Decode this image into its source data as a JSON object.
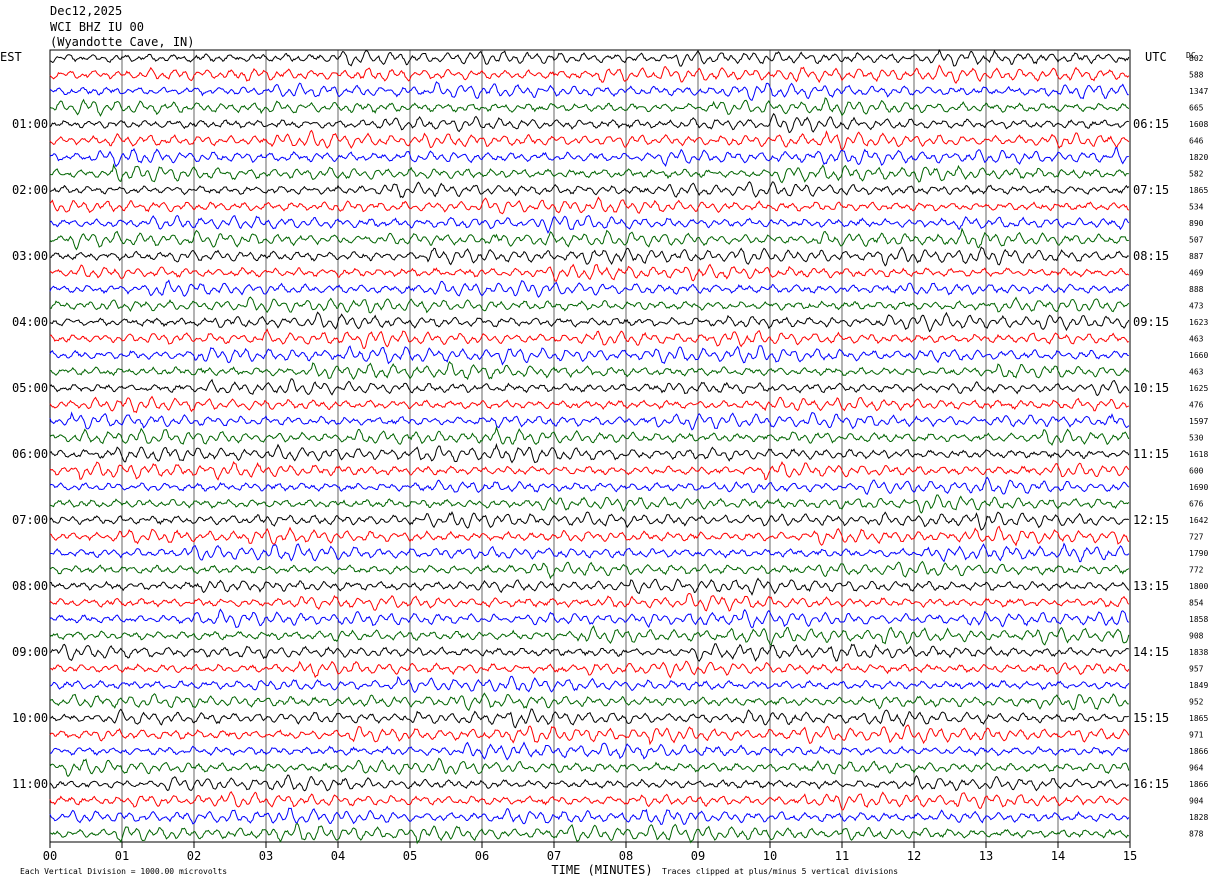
{
  "header": {
    "date": "Dec12,2025",
    "station": "WCI BHZ IU 00",
    "location": "(Wyandotte Cave, IN)"
  },
  "chart_data": {
    "type": "line",
    "title": "WCI BHZ IU 00",
    "left_axis_label": "EST",
    "right_axis_label": "UTC",
    "dc_label": "DC",
    "xlabel": "TIME (MINUTES)",
    "x_ticks": [
      "00",
      "01",
      "02",
      "03",
      "04",
      "05",
      "06",
      "07",
      "08",
      "09",
      "10",
      "11",
      "12",
      "13",
      "14",
      "15"
    ],
    "xlim": [
      0,
      15
    ],
    "trace_colors": [
      "#000000",
      "#ff0000",
      "#0000ff",
      "#006400"
    ],
    "est_labels": [
      "01:00",
      "02:00",
      "03:00",
      "04:00",
      "05:00",
      "06:00",
      "07:00",
      "08:00",
      "09:00",
      "10:00",
      "11:00"
    ],
    "utc_labels": [
      "06:15",
      "07:15",
      "08:15",
      "09:15",
      "10:15",
      "11:15",
      "12:15",
      "13:15",
      "14:15",
      "15:15",
      "16:15"
    ],
    "dc_offsets": [
      "802",
      "588",
      "1347",
      "665",
      "1608",
      "646",
      "1820",
      "582",
      "1865",
      "534",
      "890",
      "507",
      "887",
      "469",
      "888",
      "473",
      "1623",
      "463",
      "1660",
      "463",
      "1625",
      "476",
      "1597",
      "530",
      "1618",
      "600",
      "1690",
      "676",
      "1642",
      "727",
      "1790",
      "772",
      "1800",
      "854",
      "1858",
      "908",
      "1838",
      "957",
      "1849",
      "952",
      "1865",
      "971",
      "1866",
      "964",
      "1866",
      "904",
      "1828",
      "878"
    ],
    "grid": true
  },
  "footer": {
    "scale_note": "Each Vertical Division = 1000.00 microvolts",
    "clip_note": "Traces clipped at plus/minus 5 vertical divisions"
  }
}
